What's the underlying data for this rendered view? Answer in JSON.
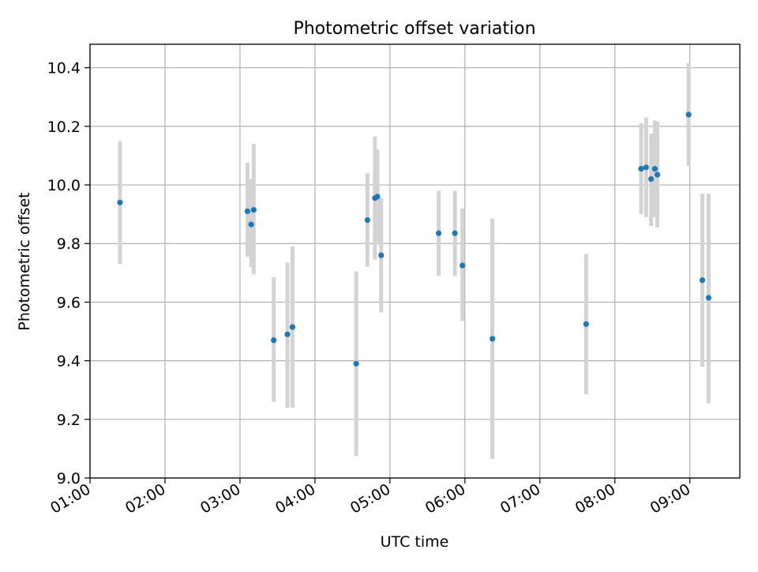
{
  "chart_data": {
    "type": "scatter",
    "title": "Photometric offset variation",
    "xlabel": "UTC time",
    "ylabel": "Photometric offset",
    "xlim": [
      "01:00",
      "09:40"
    ],
    "ylim": [
      9.0,
      10.48
    ],
    "x_ticks": [
      "01:00",
      "02:00",
      "03:00",
      "04:00",
      "05:00",
      "06:00",
      "07:00",
      "08:00",
      "09:00"
    ],
    "y_ticks": [
      "9.0",
      "9.2",
      "9.4",
      "9.6",
      "9.8",
      "10.0",
      "10.2",
      "10.4"
    ],
    "grid": true,
    "colors": {
      "marker": "#1f77b4",
      "errorbar": "#d3d3d3",
      "grid": "#b0b0b0"
    },
    "points": [
      {
        "time": "01:24",
        "y": 9.94,
        "lo": 9.73,
        "hi": 10.15
      },
      {
        "time": "03:06",
        "y": 9.91,
        "lo": 9.755,
        "hi": 10.075
      },
      {
        "time": "03:09",
        "y": 9.865,
        "lo": 9.72,
        "hi": 10.02
      },
      {
        "time": "03:11",
        "y": 9.915,
        "lo": 9.695,
        "hi": 10.14
      },
      {
        "time": "03:27",
        "y": 9.47,
        "lo": 9.26,
        "hi": 9.685
      },
      {
        "time": "03:38",
        "y": 9.49,
        "lo": 9.24,
        "hi": 9.735
      },
      {
        "time": "03:42",
        "y": 9.515,
        "lo": 9.24,
        "hi": 9.79
      },
      {
        "time": "04:33",
        "y": 9.39,
        "lo": 9.075,
        "hi": 9.705
      },
      {
        "time": "04:42",
        "y": 9.88,
        "lo": 9.72,
        "hi": 10.04
      },
      {
        "time": "04:48",
        "y": 9.955,
        "lo": 9.745,
        "hi": 10.165
      },
      {
        "time": "04:50",
        "y": 9.96,
        "lo": 9.805,
        "hi": 10.12
      },
      {
        "time": "04:53",
        "y": 9.76,
        "lo": 9.565,
        "hi": 9.955
      },
      {
        "time": "05:39",
        "y": 9.835,
        "lo": 9.69,
        "hi": 9.98
      },
      {
        "time": "05:52",
        "y": 9.835,
        "lo": 9.69,
        "hi": 9.98
      },
      {
        "time": "05:58",
        "y": 9.725,
        "lo": 9.535,
        "hi": 9.92
      },
      {
        "time": "06:22",
        "y": 9.475,
        "lo": 9.065,
        "hi": 9.885
      },
      {
        "time": "07:37",
        "y": 9.525,
        "lo": 9.285,
        "hi": 9.765
      },
      {
        "time": "08:21",
        "y": 10.055,
        "lo": 9.9,
        "hi": 10.21
      },
      {
        "time": "08:25",
        "y": 10.06,
        "lo": 9.89,
        "hi": 10.23
      },
      {
        "time": "08:29",
        "y": 10.02,
        "lo": 9.86,
        "hi": 10.175
      },
      {
        "time": "08:32",
        "y": 10.055,
        "lo": 9.89,
        "hi": 10.22
      },
      {
        "time": "08:34",
        "y": 10.035,
        "lo": 9.855,
        "hi": 10.215
      },
      {
        "time": "08:59",
        "y": 10.24,
        "lo": 10.065,
        "hi": 10.415
      },
      {
        "time": "09:10",
        "y": 9.675,
        "lo": 9.38,
        "hi": 9.97
      },
      {
        "time": "09:15",
        "y": 9.615,
        "lo": 9.255,
        "hi": 9.97
      }
    ]
  }
}
